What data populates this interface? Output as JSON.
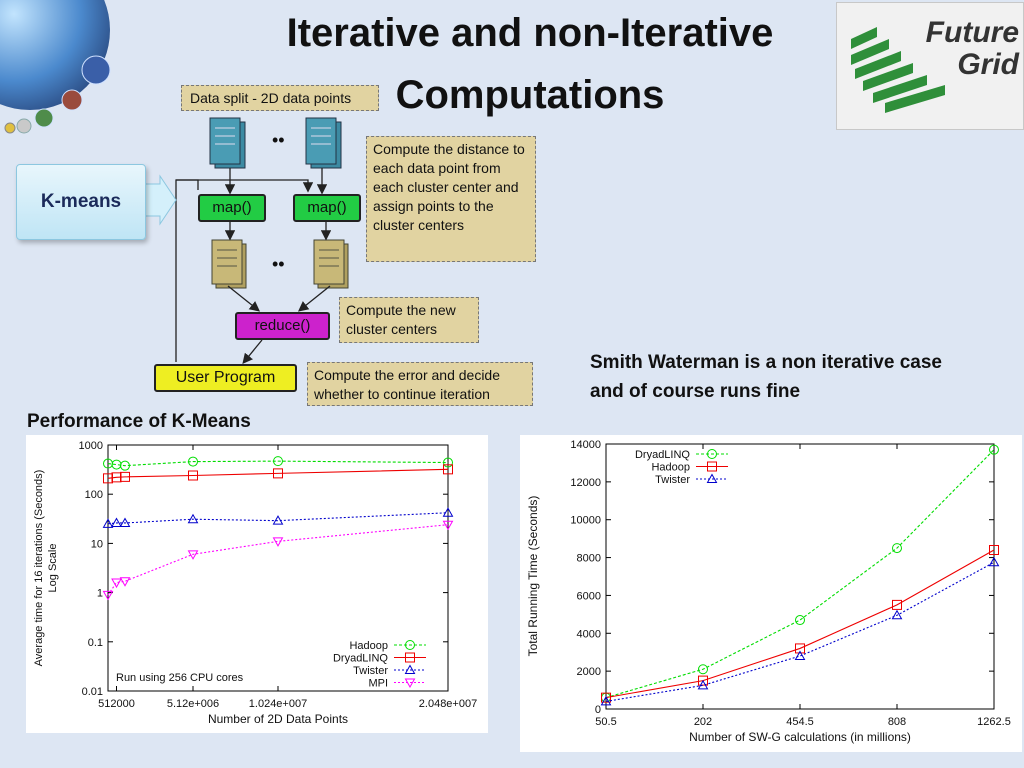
{
  "slide": {
    "title": "Iterative and non-Iterative Computations",
    "logo_text_line1": "Future",
    "logo_text_line2": "Grid"
  },
  "diagram": {
    "split_label": "Data split - 2D data points",
    "kmeans_label": "K-means",
    "map_label": "map()",
    "reduce_label": "reduce()",
    "user_program_label": "User Program",
    "dots": "••",
    "note_map": "Compute the distance to each data point from each cluster center and assign points to the cluster centers",
    "note_reduce": "Compute the new cluster centers",
    "note_user": "Compute the error and decide whether to continue iteration",
    "colors": {
      "map": "#22cc44",
      "reduce": "#cc22cc",
      "user": "#eeee22",
      "doc_blue": "#4a9cb4",
      "doc_tan": "#c8b878"
    }
  },
  "smith_waterman_text": "Smith Waterman is a non iterative case and of course runs fine",
  "kmeans_heading": "Performance of K-Means",
  "chart_data": [
    {
      "type": "line",
      "title": "",
      "xlabel": "Number of 2D Data Points",
      "ylabel": "Average time for 16 iterations (Seconds) Log Scale",
      "ylabel_line1": "Average time for 16 iterations (Seconds)",
      "ylabel_line2": "Log Scale",
      "yscale": "log",
      "ylim": [
        0.01,
        1000
      ],
      "xlim": [
        0,
        20480000
      ],
      "x_ticks": [
        512000,
        5120000,
        10240000,
        20480000
      ],
      "x_tick_labels": [
        "512000",
        "5.12e+006",
        "1.024e+007",
        "2.048e+007"
      ],
      "y_ticks": [
        0.01,
        0.1,
        1,
        10,
        100,
        1000
      ],
      "y_tick_labels": [
        "0.01",
        "0.1",
        "1",
        "10",
        "100",
        "1000"
      ],
      "annotation": "Run using 256 CPU cores",
      "legend_position": "bottom-right",
      "series": [
        {
          "name": "Hadoop",
          "color": "#00dd00",
          "marker": "circle",
          "dash": "3,2",
          "x": [
            0,
            512000,
            1024000,
            5120000,
            10240000,
            20480000
          ],
          "y": [
            420,
            400,
            380,
            460,
            470,
            440
          ]
        },
        {
          "name": "DryadLINQ",
          "color": "#ee0000",
          "marker": "square",
          "dash": "",
          "x": [
            0,
            512000,
            1024000,
            5120000,
            10240000,
            20480000
          ],
          "y": [
            210,
            220,
            225,
            240,
            265,
            320
          ]
        },
        {
          "name": "Twister",
          "color": "#0000cc",
          "marker": "triangle-up",
          "dash": "2,2",
          "x": [
            0,
            512000,
            1024000,
            5120000,
            10240000,
            20480000
          ],
          "y": [
            25,
            26,
            26,
            31,
            29,
            42
          ]
        },
        {
          "name": "MPI",
          "color": "#ff00ff",
          "marker": "triangle-down",
          "dash": "2,2",
          "x": [
            0,
            512000,
            1024000,
            5120000,
            10240000,
            20480000
          ],
          "y": [
            0.9,
            1.6,
            1.7,
            6,
            11,
            24
          ]
        }
      ]
    },
    {
      "type": "line",
      "title": "",
      "xlabel": "Number of SW-G calculations (in millions)",
      "ylabel": "Total Running Time (Seconds)",
      "xlim": [
        50.5,
        1262.5
      ],
      "ylim": [
        0,
        14000
      ],
      "x_ticks": [
        50.5,
        202,
        454.5,
        808,
        1262.5
      ],
      "x_tick_labels": [
        "50.5",
        "202",
        "454.5",
        "808",
        "1262.5"
      ],
      "y_ticks": [
        0,
        2000,
        4000,
        6000,
        8000,
        10000,
        12000,
        14000
      ],
      "y_tick_labels": [
        "0",
        "2000",
        "4000",
        "6000",
        "8000",
        "10000",
        "12000",
        "14000"
      ],
      "legend_position": "top-left",
      "series": [
        {
          "name": "DryadLINQ",
          "color": "#00dd00",
          "marker": "circle",
          "dash": "3,2",
          "x": [
            50.5,
            202,
            454.5,
            808,
            1262.5
          ],
          "y": [
            600,
            2100,
            4700,
            8500,
            13700
          ]
        },
        {
          "name": "Hadoop",
          "color": "#ee0000",
          "marker": "square",
          "dash": "",
          "x": [
            50.5,
            202,
            454.5,
            808,
            1262.5
          ],
          "y": [
            600,
            1500,
            3200,
            5500,
            8400
          ]
        },
        {
          "name": "Twister",
          "color": "#0000cc",
          "marker": "triangle-up",
          "dash": "2,2",
          "x": [
            50.5,
            202,
            454.5,
            808,
            1262.5
          ],
          "y": [
            400,
            1250,
            2800,
            4950,
            7750
          ]
        }
      ]
    }
  ]
}
